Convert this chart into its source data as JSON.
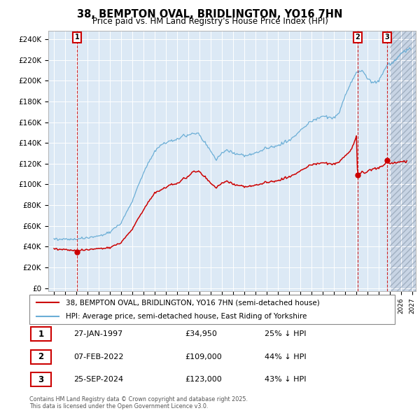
{
  "title": "38, BEMPTON OVAL, BRIDLINGTON, YO16 7HN",
  "subtitle": "Price paid vs. HM Land Registry's House Price Index (HPI)",
  "legend_line1": "38, BEMPTON OVAL, BRIDLINGTON, YO16 7HN (semi-detached house)",
  "legend_line2": "HPI: Average price, semi-detached house, East Riding of Yorkshire",
  "transactions": [
    {
      "n": 1,
      "date_num": 1997.074,
      "price": 34950,
      "label": "27-JAN-1997",
      "pct": "25% ↓ HPI"
    },
    {
      "n": 2,
      "date_num": 2022.096,
      "price": 109000,
      "label": "07-FEB-2022",
      "pct": "44% ↓ HPI"
    },
    {
      "n": 3,
      "date_num": 2024.736,
      "price": 123000,
      "label": "25-SEP-2024",
      "pct": "43% ↓ HPI"
    }
  ],
  "hpi_color": "#6baed6",
  "price_color": "#cc0000",
  "vline_color": "#cc0000",
  "dot_color": "#cc0000",
  "background_color": "#dce9f5",
  "grid_color": "#ffffff",
  "yticks": [
    0,
    20000,
    40000,
    60000,
    80000,
    100000,
    120000,
    140000,
    160000,
    180000,
    200000,
    220000,
    240000
  ],
  "ylim": [
    -3000,
    248000
  ],
  "xlim_start": 1994.5,
  "xlim_end": 2027.3,
  "future_start": 2025.0,
  "copyright_text": "Contains HM Land Registry data © Crown copyright and database right 2025.\nThis data is licensed under the Open Government Licence v3.0."
}
